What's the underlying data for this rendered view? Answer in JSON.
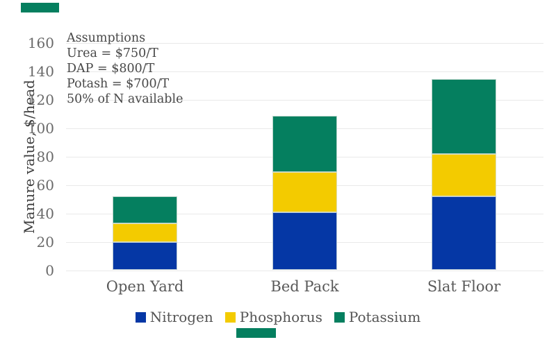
{
  "accents": {
    "color": "#057F5F"
  },
  "assumptions": {
    "lines": [
      "Assumptions",
      "Urea = $750/T",
      "DAP = $800/T",
      "Potash = $700/T",
      "50% of N available"
    ]
  },
  "chart_data": {
    "type": "bar",
    "stacked": true,
    "title": "",
    "ylabel": "Manure value, $/head",
    "xlabel": "",
    "categories": [
      "Open Yard",
      "Bed Pack",
      "Slat Floor"
    ],
    "series": [
      {
        "name": "Nitrogen",
        "color": "#0537A5",
        "values": [
          20,
          41,
          52
        ]
      },
      {
        "name": "Phosphorus",
        "color": "#F3CB00",
        "values": [
          13,
          28,
          30
        ]
      },
      {
        "name": "Potassium",
        "color": "#057F5F",
        "values": [
          19,
          40,
          53
        ]
      }
    ],
    "totals": [
      52,
      109,
      135
    ],
    "ylim": [
      0,
      160
    ],
    "yticks": [
      0,
      20,
      40,
      60,
      80,
      100,
      120,
      140,
      160
    ],
    "grid": true,
    "gridline_color": "#e9e9e9",
    "text_color": "#595959",
    "legend_position": "bottom",
    "annotations": [
      "Assumptions",
      "Urea = $750/T",
      "DAP = $800/T",
      "Potash = $700/T",
      "50% of N available"
    ]
  }
}
